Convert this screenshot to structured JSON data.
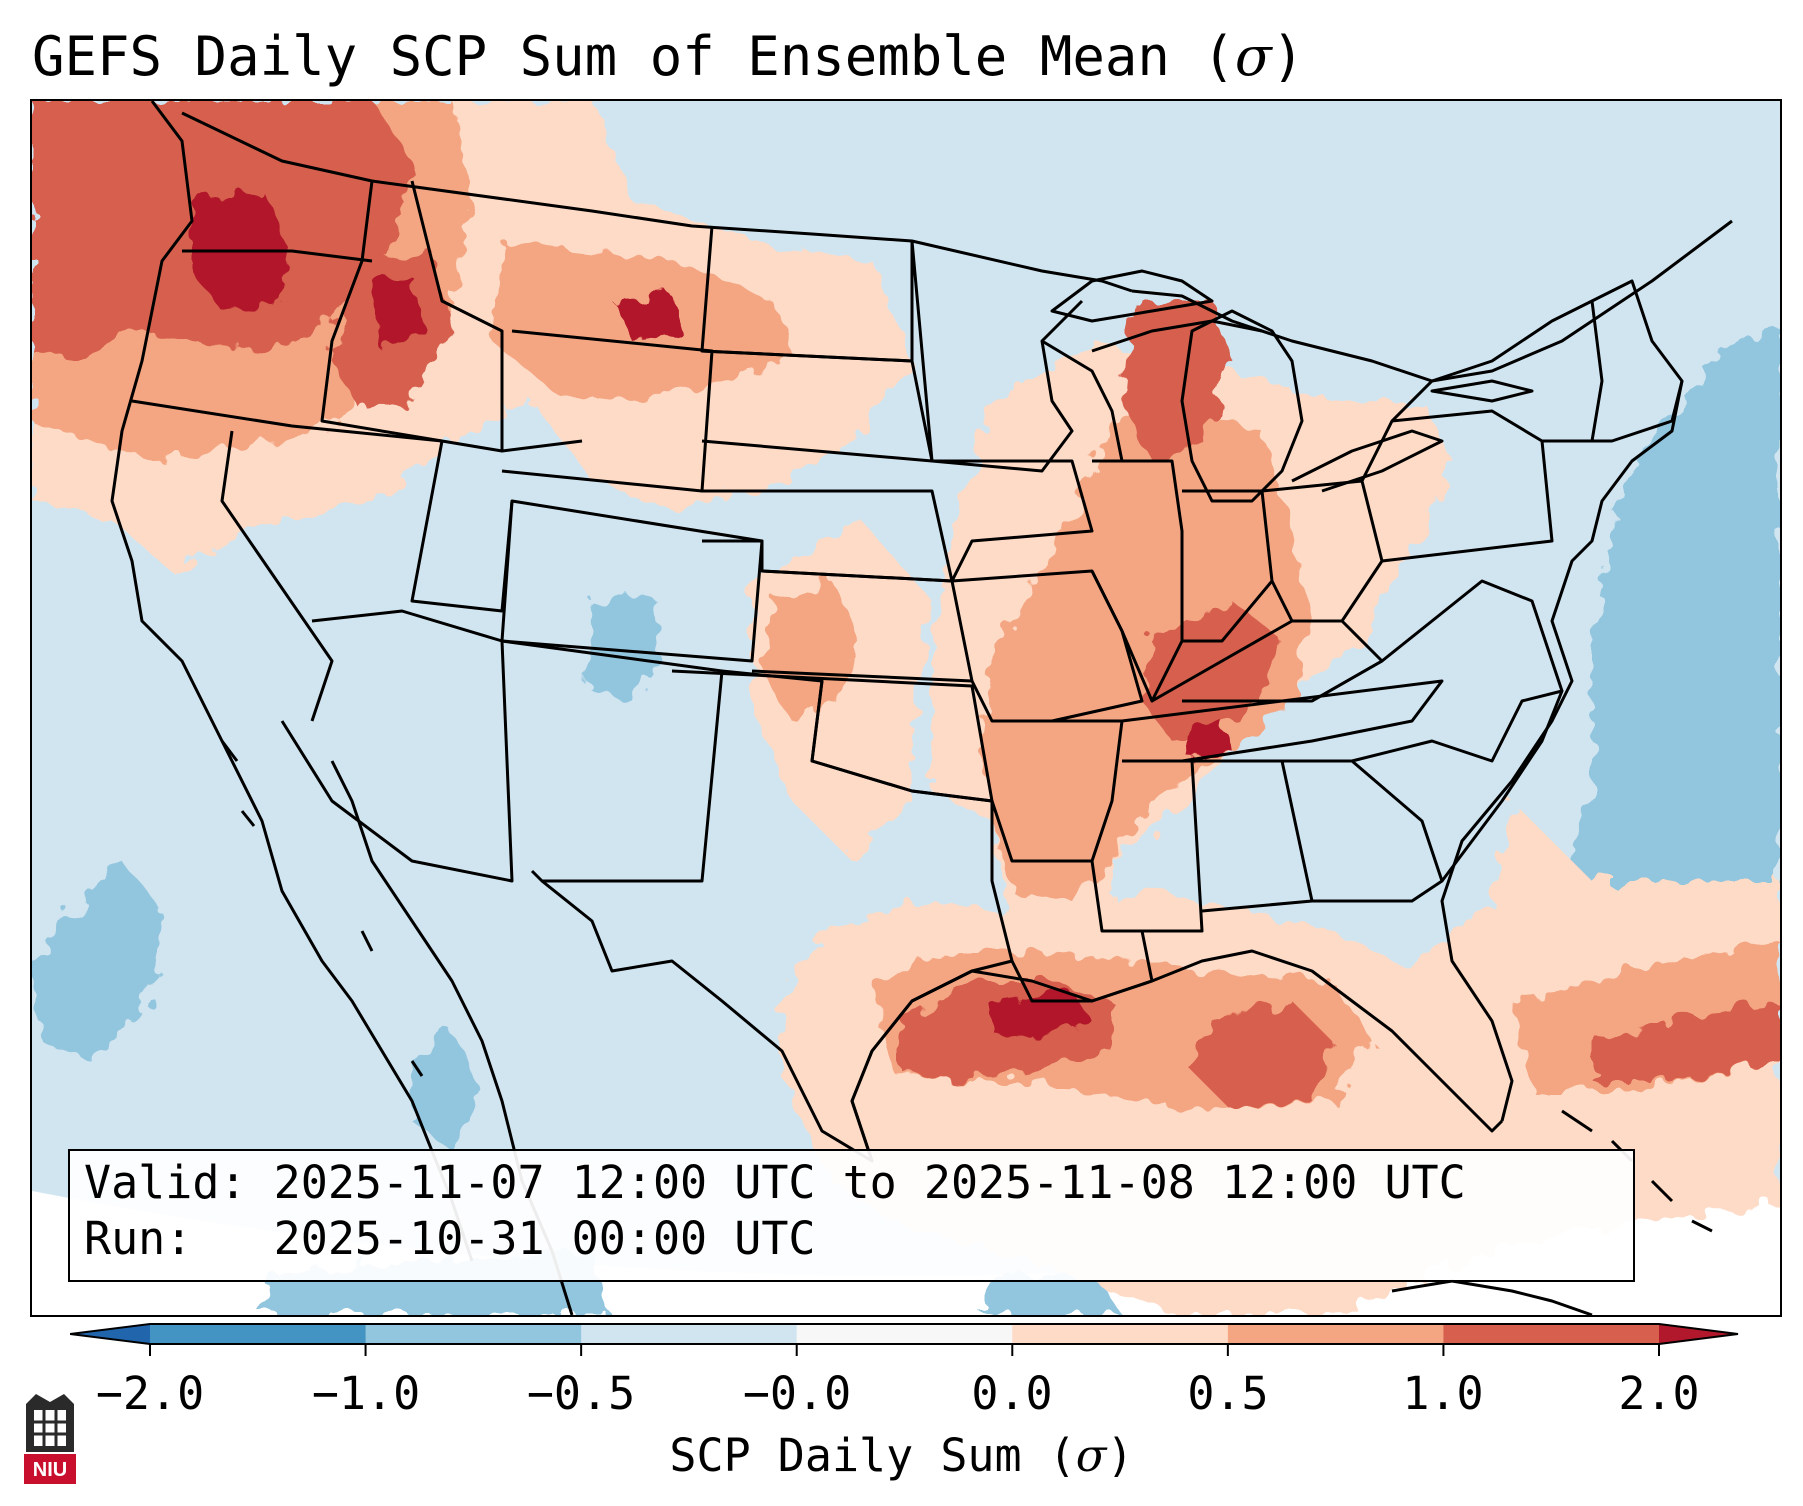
{
  "title": {
    "text": "GEFS Daily SCP Sum of Ensemble Mean (",
    "symbol": "σ",
    "close": ")"
  },
  "info": {
    "valid_label": "Valid:",
    "valid_value": "2025-11-07 12:00 UTC to 2025-11-08 12:00 UTC",
    "run_label": "Run:",
    "run_value": "2025-10-31 00:00 UTC"
  },
  "colorbar": {
    "label_text": "SCP Daily Sum (",
    "label_symbol": "σ",
    "label_close": ")",
    "ticks": [
      "−2.0",
      "−1.0",
      "−0.5",
      "−0.0",
      "0.0",
      "0.5",
      "1.0",
      "2.0"
    ],
    "bins": [
      {
        "range": "< -2.0",
        "color": "#2166ac"
      },
      {
        "range": "-2.0 to -1.0",
        "color": "#4393c3"
      },
      {
        "range": "-1.0 to -0.5",
        "color": "#92c5de"
      },
      {
        "range": "-0.5 to -0.0",
        "color": "#d1e5f0"
      },
      {
        "range": "-0.0 to 0.0",
        "color": "#f7f7f7"
      },
      {
        "range": "0.0 to 0.5",
        "color": "#fddbc7"
      },
      {
        "range": "0.5 to 1.0",
        "color": "#f4a582"
      },
      {
        "range": "1.0 to 2.0",
        "color": "#d6604d"
      },
      {
        "range": "> 2.0",
        "color": "#b2182b"
      }
    ]
  },
  "map": {
    "projection": "Lambert conformal, CONUS",
    "background_color": "#d1e5f0",
    "anomaly_regions": [
      {
        "name": "Pacific Northwest / Washington",
        "level": "1.0 to 2.0 and above"
      },
      {
        "name": "Northern Rockies / Montana",
        "level": "0.0 to 2.0"
      },
      {
        "name": "Mississippi & Ohio Valleys",
        "level": "0.5 to 2.0"
      },
      {
        "name": "Michigan / Great Lakes",
        "level": "0.5 to 2.0"
      },
      {
        "name": "Gulf of Mexico / Texas coast",
        "level": "1.0 to 2.0 and above"
      },
      {
        "name": "Western Atlantic off Southeast",
        "level": "0.5 to 2.0"
      },
      {
        "name": "Northwest Atlantic",
        "level": "-1.0 to -0.5"
      },
      {
        "name": "Eastern Pacific off Baja",
        "level": "-1.0 to -0.5"
      }
    ]
  },
  "logo": {
    "text": "NIU"
  }
}
